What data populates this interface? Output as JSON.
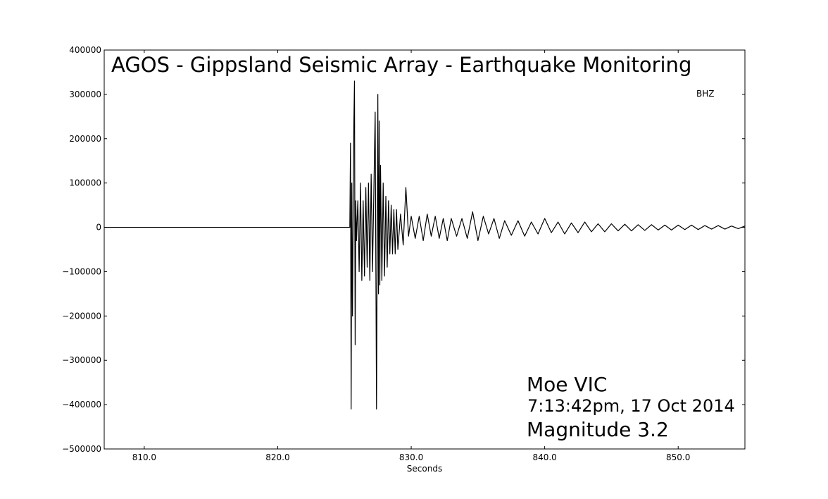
{
  "chart_data": {
    "type": "line",
    "title": "AGOS - Gippsland Seismic Array - Earthquake Monitoring",
    "xlabel": "Seconds",
    "ylabel": "",
    "xlim": [
      807.0,
      855.0
    ],
    "ylim": [
      -500000,
      400000
    ],
    "x_ticks": [
      810.0,
      820.0,
      830.0,
      840.0,
      850.0
    ],
    "x_tick_labels": [
      "810.0",
      "820.0",
      "830.0",
      "840.0",
      "850.0"
    ],
    "y_ticks": [
      400000,
      300000,
      200000,
      100000,
      0,
      -100000,
      -200000,
      -300000,
      -400000,
      -500000
    ],
    "y_tick_labels": [
      "400000",
      "300000",
      "200000",
      "100000",
      "0",
      "−100000",
      "−200000",
      "−300000",
      "−400000",
      "−500000"
    ],
    "grid": false,
    "line_color": "#000000",
    "series": [
      {
        "name": "BHZ",
        "x": [
          807.0,
          825.4,
          825.45,
          825.5,
          825.55,
          825.6,
          825.7,
          825.75,
          825.8,
          825.85,
          825.9,
          826.0,
          826.1,
          826.2,
          826.3,
          826.4,
          826.5,
          826.6,
          826.7,
          826.8,
          826.9,
          827.0,
          827.1,
          827.2,
          827.3,
          827.4,
          827.5,
          827.55,
          827.6,
          827.65,
          827.7,
          827.8,
          827.9,
          828.0,
          828.1,
          828.2,
          828.3,
          828.4,
          828.5,
          828.6,
          828.7,
          828.8,
          828.9,
          829.0,
          829.2,
          829.4,
          829.6,
          829.8,
          830.0,
          830.3,
          830.6,
          830.9,
          831.2,
          831.5,
          831.8,
          832.1,
          832.4,
          832.7,
          833.0,
          833.4,
          833.8,
          834.2,
          834.6,
          835.0,
          835.4,
          835.8,
          836.2,
          836.6,
          837.0,
          837.5,
          838.0,
          838.5,
          839.0,
          839.5,
          840.0,
          840.5,
          841.0,
          841.5,
          842.0,
          842.5,
          843.0,
          843.5,
          844.0,
          844.5,
          845.0,
          845.5,
          846.0,
          846.5,
          847.0,
          847.5,
          848.0,
          848.5,
          849.0,
          849.5,
          850.0,
          850.5,
          851.0,
          851.5,
          852.0,
          852.5,
          853.0,
          853.5,
          854.0,
          854.5,
          855.0
        ],
        "y": [
          0,
          0,
          190000,
          -410000,
          100000,
          -200000,
          230000,
          330000,
          -265000,
          60000,
          -30000,
          60000,
          -100000,
          100000,
          -120000,
          60000,
          -110000,
          90000,
          -90000,
          100000,
          -120000,
          120000,
          -100000,
          80000,
          260000,
          -410000,
          300000,
          -150000,
          240000,
          -130000,
          140000,
          -120000,
          100000,
          -110000,
          70000,
          -90000,
          60000,
          -60000,
          50000,
          -60000,
          40000,
          -60000,
          40000,
          -50000,
          30000,
          -40000,
          90000,
          -20000,
          25000,
          -25000,
          25000,
          -30000,
          30000,
          -20000,
          25000,
          -25000,
          20000,
          -30000,
          20000,
          -20000,
          20000,
          -25000,
          35000,
          -30000,
          25000,
          -15000,
          20000,
          -25000,
          15000,
          -18000,
          15000,
          -20000,
          12000,
          -15000,
          20000,
          -12000,
          12000,
          -15000,
          10000,
          -12000,
          12000,
          -10000,
          8000,
          -10000,
          8000,
          -8000,
          7000,
          -8000,
          6000,
          -7000,
          6000,
          -6000,
          5000,
          -6000,
          5000,
          -5000,
          5000,
          -5000,
          4000,
          -4000,
          4000,
          -4000,
          3000,
          -3000,
          3000
        ]
      }
    ],
    "legend": "BHZ",
    "legend_placement": "top-right"
  },
  "annotation": {
    "location": "Moe VIC",
    "time": "7:13:42pm, 17 Oct 2014",
    "magnitude": "Magnitude 3.2"
  }
}
